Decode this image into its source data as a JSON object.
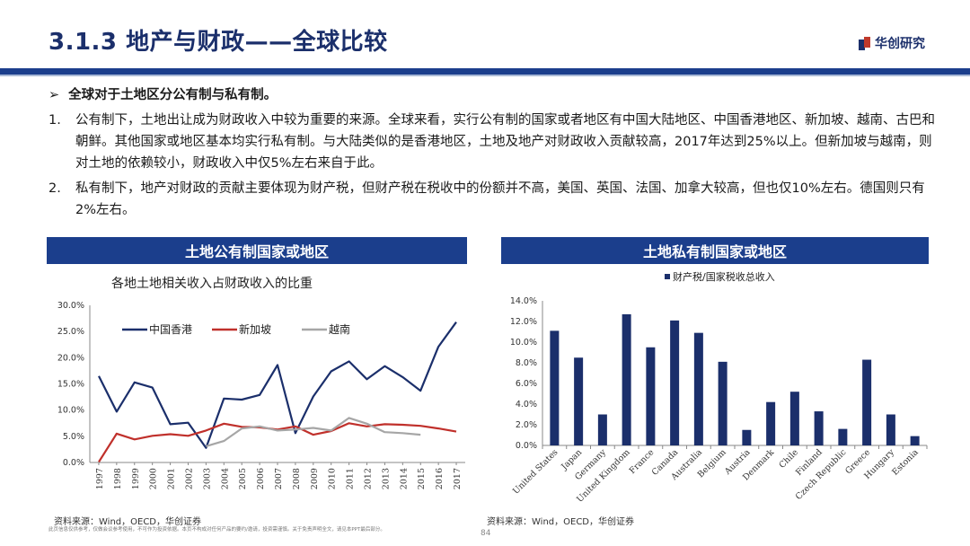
{
  "header": {
    "title": "3.1.3 地产与财政——全球比较",
    "brand": "华创研究"
  },
  "body": {
    "bullet": "全球对于土地区分公有制与私有制。",
    "p1_num": "1.",
    "p1": "公有制下，土地出让成为财政收入中较为重要的来源。全球来看，实行公有制的国家或者地区有中国大陆地区、中国香港地区、新加坡、越南、古巴和朝鲜。其他国家或地区基本均实行私有制。与大陆类似的是香港地区，土地及地产对财政收入贡献较高，2017年达到25%以上。但新加坡与越南，则对土地的依赖较小，财政收入中仅5%左右来自于此。",
    "p2_num": "2.",
    "p2": "私有制下，地产对财政的贡献主要体现为财产税，但财产税在税收中的份额并不高，美国、英国、法国、加拿大较高，但也仅10%左右。德国则只有2%左右。"
  },
  "left_panel": {
    "header": "土地公有制国家或地区",
    "source": "资料来源：Wind，OECD，华创证券"
  },
  "right_panel": {
    "header": "土地私有制国家或地区",
    "source": "资料来源：Wind，OECD，华创证券"
  },
  "footer": {
    "disclaimer": "此页信息仅供参考，仅做会议参考使用，不可作为投资依据。本页不构成对任何产品的要约/邀请，投资需谨慎。关于免责声明全文，请见本PPT最后部分。",
    "page": "84"
  },
  "chart_data": [
    {
      "type": "line",
      "title": "各地土地相关收入占财政收入的比重",
      "x": [
        "1997",
        "1998",
        "1999",
        "2000",
        "2001",
        "2002",
        "2003",
        "2004",
        "2005",
        "2006",
        "2007",
        "2008",
        "2009",
        "2010",
        "2011",
        "2012",
        "2013",
        "2014",
        "2015",
        "2016",
        "2017"
      ],
      "ylim": [
        0,
        30
      ],
      "yticks": [
        "0.0%",
        "5.0%",
        "10.0%",
        "15.0%",
        "20.0%",
        "25.0%",
        "30.0%"
      ],
      "legend_position": "top",
      "series": [
        {
          "name": "中国香港",
          "color": "#1b2f6b",
          "values": [
            16.5,
            9.7,
            15.3,
            14.3,
            7.3,
            7.6,
            2.8,
            12.2,
            12.0,
            12.9,
            18.6,
            5.6,
            12.6,
            17.4,
            19.3,
            15.9,
            18.4,
            16.3,
            13.7,
            22.1,
            26.8
          ]
        },
        {
          "name": "新加坡",
          "color": "#c0302b",
          "values": [
            0.1,
            5.5,
            4.4,
            5.1,
            5.4,
            5.1,
            6.1,
            7.4,
            6.8,
            6.7,
            6.3,
            6.9,
            5.3,
            6.0,
            7.5,
            6.9,
            7.3,
            7.2,
            7.0,
            6.5,
            5.9
          ]
        },
        {
          "name": "越南",
          "color": "#a6a6a6",
          "values": [
            null,
            null,
            null,
            null,
            null,
            null,
            3.1,
            4.1,
            6.5,
            6.9,
            6.1,
            6.3,
            6.6,
            6.1,
            8.5,
            7.4,
            5.8,
            5.6,
            5.3,
            null,
            null
          ]
        }
      ]
    },
    {
      "type": "bar",
      "title": "",
      "categories": [
        "United States",
        "Japan",
        "Germany",
        "United Kingdom",
        "France",
        "Canada",
        "Australia",
        "Belgium",
        "Austria",
        "Denmark",
        "Chile",
        "Finland",
        "Czech Republic",
        "Greece",
        "Hungary",
        "Estonia"
      ],
      "ylim": [
        0,
        14
      ],
      "yticks": [
        "0.0%",
        "2.0%",
        "4.0%",
        "6.0%",
        "8.0%",
        "10.0%",
        "12.0%",
        "14.0%"
      ],
      "legend_position": "top",
      "series": [
        {
          "name": "财产税/国家税收总收入",
          "color": "#1b2f6b",
          "values": [
            11.1,
            8.5,
            3.0,
            12.7,
            9.5,
            12.1,
            10.9,
            8.1,
            1.5,
            4.2,
            5.2,
            3.3,
            1.6,
            8.3,
            3.0,
            0.9
          ]
        }
      ]
    }
  ]
}
